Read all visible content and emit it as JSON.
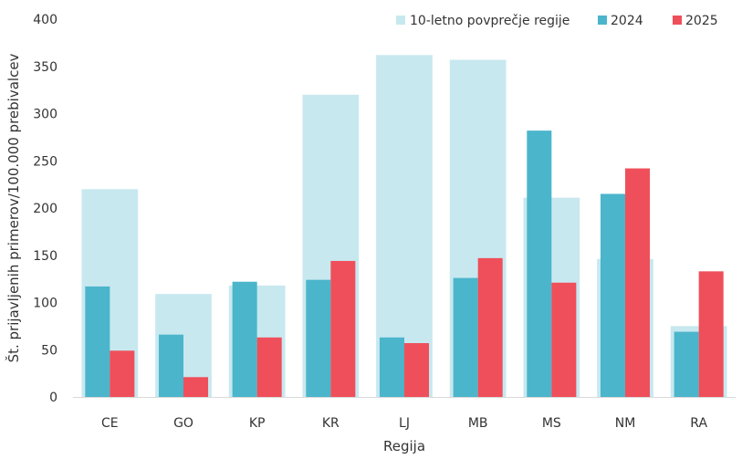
{
  "chart_data": {
    "type": "bar",
    "title": "",
    "xlabel": "Regija",
    "ylabel": "Št. prijavljenih primerov/100.000 prebivalcev",
    "ylim": [
      0,
      400
    ],
    "yticks": [
      0,
      50,
      100,
      150,
      200,
      250,
      300,
      350,
      400
    ],
    "categories": [
      "CE",
      "GO",
      "KP",
      "KR",
      "LJ",
      "MB",
      "MS",
      "NM",
      "RA"
    ],
    "series": [
      {
        "name": "10-letno povprečje regije",
        "values": [
          220,
          109,
          118,
          320,
          362,
          357,
          211,
          146,
          75
        ],
        "color": "#c8e8ef"
      },
      {
        "name": "2024",
        "values": [
          117,
          66,
          122,
          124,
          63,
          126,
          282,
          215,
          69
        ],
        "color": "#4bb5cb"
      },
      {
        "name": "2025",
        "values": [
          49,
          21,
          63,
          144,
          57,
          147,
          121,
          242,
          133
        ],
        "color": "#ef4f5a"
      }
    ],
    "legend_position": "top-right",
    "grid": false
  }
}
